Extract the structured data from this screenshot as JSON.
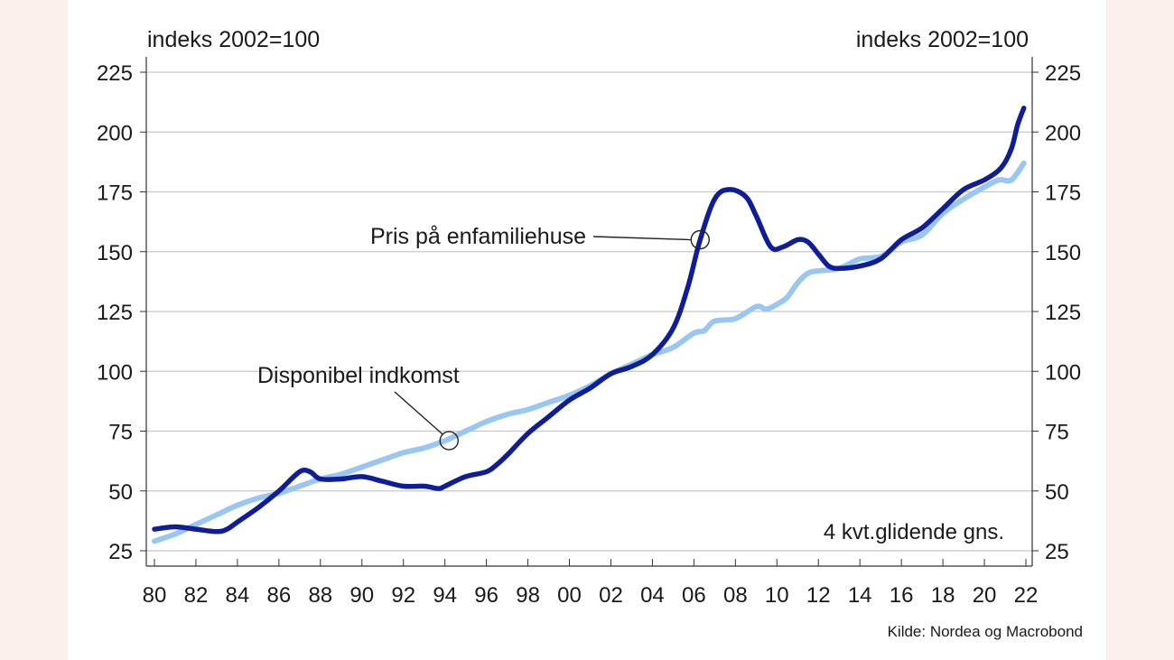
{
  "chart_data": {
    "type": "line",
    "y_unit_left": "indeks 2002=100",
    "y_unit_right": "indeks 2002=100",
    "ylim": [
      25,
      225
    ],
    "yticks": [
      25,
      50,
      75,
      100,
      125,
      150,
      175,
      200,
      225
    ],
    "xlim": [
      1980,
      2022
    ],
    "xticks": [
      1980,
      1982,
      1984,
      1986,
      1988,
      1990,
      1992,
      1994,
      1996,
      1998,
      2000,
      2002,
      2004,
      2006,
      2008,
      2010,
      2012,
      2014,
      2016,
      2018,
      2020,
      2022
    ],
    "xtick_labels": [
      "80",
      "82",
      "84",
      "86",
      "88",
      "90",
      "92",
      "94",
      "96",
      "98",
      "00",
      "02",
      "04",
      "06",
      "08",
      "10",
      "12",
      "14",
      "16",
      "18",
      "20",
      "22"
    ],
    "grid": true,
    "note": "4 kvt.glidende gns.",
    "source": "Kilde: Nordea og Macrobond",
    "series": [
      {
        "name": "Pris på  enfamiliehuse",
        "color": "#0f1e96",
        "points": [
          [
            1980,
            34
          ],
          [
            1981,
            35
          ],
          [
            1982,
            34
          ],
          [
            1983,
            33
          ],
          [
            1983.5,
            34
          ],
          [
            1984,
            37
          ],
          [
            1985,
            43
          ],
          [
            1986,
            50
          ],
          [
            1987,
            58
          ],
          [
            1987.5,
            58
          ],
          [
            1988,
            55
          ],
          [
            1989,
            55
          ],
          [
            1990,
            56
          ],
          [
            1991,
            54
          ],
          [
            1992,
            52
          ],
          [
            1993,
            52
          ],
          [
            1993.7,
            51
          ],
          [
            1994,
            52
          ],
          [
            1995,
            56
          ],
          [
            1996,
            58
          ],
          [
            1996.5,
            61
          ],
          [
            1997,
            65
          ],
          [
            1998,
            74
          ],
          [
            1999,
            81
          ],
          [
            2000,
            88
          ],
          [
            2001,
            93
          ],
          [
            2002,
            99
          ],
          [
            2003,
            102
          ],
          [
            2004,
            107
          ],
          [
            2005,
            118
          ],
          [
            2005.7,
            135
          ],
          [
            2006.3,
            155
          ],
          [
            2007,
            172
          ],
          [
            2007.7,
            176
          ],
          [
            2008.5,
            173
          ],
          [
            2009,
            165
          ],
          [
            2009.7,
            152
          ],
          [
            2010.3,
            152
          ],
          [
            2011,
            155
          ],
          [
            2011.5,
            154
          ],
          [
            2012,
            149
          ],
          [
            2012.5,
            144
          ],
          [
            2013,
            143
          ],
          [
            2014,
            144
          ],
          [
            2015,
            147
          ],
          [
            2016,
            155
          ],
          [
            2017,
            160
          ],
          [
            2018,
            168
          ],
          [
            2019,
            176
          ],
          [
            2020,
            180
          ],
          [
            2020.8,
            185
          ],
          [
            2021.3,
            193
          ],
          [
            2021.6,
            203
          ],
          [
            2021.9,
            210
          ]
        ]
      },
      {
        "name": "Disponibel indkomst",
        "color": "#99c6f2",
        "points": [
          [
            1980,
            29
          ],
          [
            1981,
            32
          ],
          [
            1982,
            36
          ],
          [
            1983,
            40
          ],
          [
            1984,
            44
          ],
          [
            1985,
            47
          ],
          [
            1986,
            49
          ],
          [
            1987,
            52
          ],
          [
            1988,
            55
          ],
          [
            1989,
            57
          ],
          [
            1990,
            60
          ],
          [
            1991,
            63
          ],
          [
            1992,
            66
          ],
          [
            1993,
            68
          ],
          [
            1994,
            71
          ],
          [
            1995,
            75
          ],
          [
            1996,
            79
          ],
          [
            1997,
            82
          ],
          [
            1998,
            84
          ],
          [
            1999,
            87
          ],
          [
            2000,
            90
          ],
          [
            2001,
            94
          ],
          [
            2002,
            99
          ],
          [
            2003,
            103
          ],
          [
            2004,
            107
          ],
          [
            2005,
            110
          ],
          [
            2006,
            116
          ],
          [
            2006.5,
            117
          ],
          [
            2007,
            121
          ],
          [
            2008,
            122
          ],
          [
            2009,
            127
          ],
          [
            2009.5,
            126
          ],
          [
            2010,
            128
          ],
          [
            2010.5,
            131
          ],
          [
            2011,
            137
          ],
          [
            2011.5,
            141
          ],
          [
            2012,
            142
          ],
          [
            2013,
            143
          ],
          [
            2014,
            147
          ],
          [
            2015,
            148
          ],
          [
            2016,
            154
          ],
          [
            2017,
            157
          ],
          [
            2018,
            166
          ],
          [
            2019,
            172
          ],
          [
            2020,
            177
          ],
          [
            2020.7,
            180
          ],
          [
            2021.3,
            180
          ],
          [
            2021.9,
            187
          ]
        ]
      }
    ],
    "annotations": [
      {
        "text": "Pris på  enfamiliehuse",
        "series": 0,
        "x": 2006.3,
        "y": 155
      },
      {
        "text": "Disponibel indkomst",
        "series": 1,
        "x": 1994.2,
        "y": 71
      }
    ]
  }
}
